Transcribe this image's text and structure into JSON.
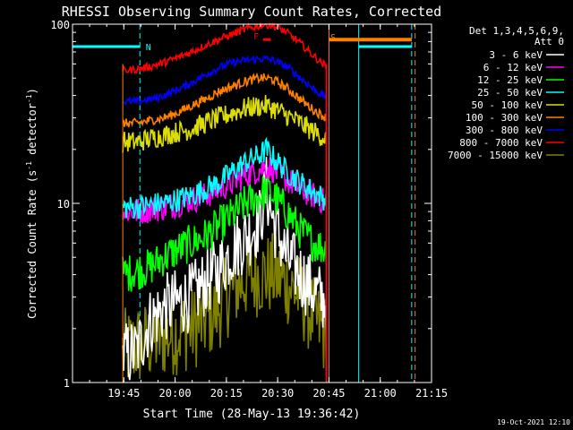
{
  "chart_data": {
    "type": "line",
    "title": "RHESSI Observing Summary Count Rates, Corrected",
    "ylabel_main": "Corrected Count Rate (s",
    "ylabel_sup1": "-1",
    "ylabel_mid": " detector",
    "ylabel_sup2": "-1",
    "ylabel_end": ")",
    "xlabel": "Start Time (28-May-13 19:36:42)",
    "timestamp": "19-Oct-2021 12:10",
    "x_range_minutes": [
      -6.7,
      98.3
    ],
    "y_scale": "log",
    "ylim": [
      1,
      100
    ],
    "y_ticks": [
      {
        "value": 1,
        "label": "1"
      },
      {
        "value": 10,
        "label": "10"
      },
      {
        "value": 100,
        "label": "100"
      }
    ],
    "x_ticks": [
      {
        "minute": 8.3,
        "label": "19:45"
      },
      {
        "minute": 23.3,
        "label": "20:00"
      },
      {
        "minute": 38.3,
        "label": "20:15"
      },
      {
        "minute": 53.3,
        "label": "20:30"
      },
      {
        "minute": 68.3,
        "label": "20:45"
      },
      {
        "minute": 83.3,
        "label": "21:00"
      },
      {
        "minute": 98.3,
        "label": "21:15"
      }
    ],
    "legend": {
      "position": "right",
      "header": [
        "Det 1,3,4,5,6,9,",
        "Att 0"
      ],
      "entries": [
        {
          "label": "3 - 6 keV",
          "color": "#ffffff"
        },
        {
          "label": "6 - 12 keV",
          "color": "#ff00ff"
        },
        {
          "label": "12 - 25 keV",
          "color": "#00ff00"
        },
        {
          "label": "25 - 50 keV",
          "color": "#00ffff"
        },
        {
          "label": "50 - 100 keV",
          "color": "#dddd00"
        },
        {
          "label": "100 - 300 keV",
          "color": "#ff8000"
        },
        {
          "label": "300 - 800 keV",
          "color": "#0000ff"
        },
        {
          "label": "800 - 7000 keV",
          "color": "#ff0000"
        },
        {
          "label": "7000 - 15000 keV",
          "color": "#808000"
        }
      ]
    },
    "annotations": [
      {
        "text": "N",
        "minute": 15.5,
        "value": 75,
        "color": "#00ffff"
      },
      {
        "text": "F",
        "minute": 47.0,
        "value": 86,
        "color": "#ff0000"
      },
      {
        "text": "S",
        "minute": 69.5,
        "value": 85,
        "color": "#ff8000"
      }
    ],
    "night_bars": [
      {
        "start": -6.7,
        "end": 13.0,
        "value": 75,
        "color": "#00ffff"
      },
      {
        "start": 77.0,
        "end": 92.5,
        "value": 75,
        "color": "#00ffff"
      }
    ],
    "saa_bar": {
      "start": 68.3,
      "end": 92.5,
      "value": 82,
      "color": "#ff8000"
    },
    "flare_mark": {
      "start": 49.0,
      "end": 51.3,
      "value": 82,
      "color": "#ff0000"
    },
    "markers": [
      {
        "minute": -6.7,
        "color": "#00ffff",
        "style": "solid"
      },
      {
        "minute": 13.0,
        "color": "#00ffff",
        "style": "dashed"
      },
      {
        "minute": 68.3,
        "color": "#ff8000",
        "style": "solid"
      },
      {
        "minute": 77.0,
        "color": "#00ffff",
        "style": "solid"
      },
      {
        "minute": 92.5,
        "color": "#00ffff",
        "style": "dashed"
      },
      {
        "minute": 93.5,
        "color": "#ff8000",
        "style": "dashed"
      }
    ],
    "series_window": [
      8.0,
      67.5
    ],
    "series": [
      {
        "label": "7000 - 15000 keV",
        "color": "#808000",
        "x": [
          8,
          12,
          16,
          20,
          24,
          28,
          32,
          36,
          40,
          44,
          48,
          50,
          52,
          56,
          60,
          64,
          67.5
        ],
        "y": [
          1.5,
          1.6,
          1.7,
          1.8,
          1.9,
          2.0,
          2.2,
          2.6,
          3.3,
          3.8,
          4.0,
          4.0,
          4.0,
          3.6,
          3.0,
          2.3,
          1.8
        ],
        "noise": 0.55
      },
      {
        "label": "3 - 6 keV",
        "color": "#ffffff",
        "x": [
          8,
          12,
          16,
          20,
          24,
          28,
          32,
          36,
          40,
          44,
          48,
          50,
          52,
          56,
          60,
          64,
          67.5
        ],
        "y": [
          1.4,
          1.5,
          2.2,
          2.6,
          2.8,
          3.0,
          3.6,
          4.2,
          5.5,
          6.5,
          8.0,
          12.0,
          8.0,
          5.0,
          4.0,
          3.2,
          2.8
        ],
        "noise": 0.45
      },
      {
        "label": "12 - 25 keV",
        "color": "#00ff00",
        "x": [
          8,
          12,
          16,
          20,
          24,
          28,
          32,
          36,
          40,
          44,
          48,
          50,
          52,
          56,
          60,
          64,
          67.5
        ],
        "y": [
          4.0,
          4.2,
          4.4,
          5.0,
          5.5,
          6.0,
          6.5,
          7.5,
          8.5,
          10.0,
          11.0,
          12.0,
          11.0,
          9.0,
          7.0,
          6.0,
          5.5
        ],
        "noise": 0.25
      },
      {
        "label": "6 - 12 keV",
        "color": "#ff00ff",
        "x": [
          8,
          12,
          16,
          20,
          24,
          28,
          32,
          36,
          40,
          44,
          48,
          50,
          52,
          56,
          60,
          64,
          67.5
        ],
        "y": [
          9.0,
          9.0,
          9.3,
          9.5,
          10.0,
          10.5,
          11.0,
          12.0,
          13.0,
          14.5,
          15.5,
          16.0,
          15.5,
          13.5,
          12.0,
          11.0,
          10.0
        ],
        "noise": 0.18
      },
      {
        "label": "25 - 50 keV",
        "color": "#00ffff",
        "x": [
          8,
          12,
          16,
          20,
          24,
          28,
          32,
          36,
          40,
          44,
          48,
          50,
          52,
          56,
          60,
          64,
          67.5
        ],
        "y": [
          9.5,
          9.5,
          9.8,
          10.0,
          10.5,
          11.0,
          12.0,
          13.0,
          15.0,
          17.0,
          18.5,
          20.0,
          18.0,
          15.0,
          13.0,
          11.5,
          10.5
        ],
        "noise": 0.16
      },
      {
        "label": "50 - 100 keV",
        "color": "#dddd00",
        "x": [
          8,
          12,
          16,
          20,
          24,
          28,
          32,
          36,
          40,
          44,
          48,
          50,
          52,
          56,
          60,
          64,
          67.5
        ],
        "y": [
          22.0,
          22.0,
          23.0,
          24.0,
          25.0,
          26.0,
          28.0,
          30.0,
          32.0,
          34.0,
          35.0,
          35.0,
          34.0,
          31.0,
          28.0,
          25.0,
          23.0
        ],
        "noise": 0.14
      },
      {
        "label": "100 - 300 keV",
        "color": "#ff8000",
        "x": [
          8,
          12,
          16,
          20,
          24,
          28,
          32,
          36,
          40,
          44,
          48,
          50,
          52,
          56,
          60,
          64,
          67.5
        ],
        "y": [
          28.0,
          28.0,
          29.0,
          30.0,
          32.0,
          35.0,
          38.0,
          42.0,
          45.0,
          48.0,
          50.0,
          50.0,
          49.0,
          44.0,
          38.0,
          33.0,
          30.0
        ],
        "noise": 0.06
      },
      {
        "label": "300 - 800 keV",
        "color": "#0000ff",
        "x": [
          8,
          12,
          16,
          20,
          24,
          28,
          32,
          36,
          40,
          44,
          48,
          50,
          52,
          56,
          60,
          64,
          67.5
        ],
        "y": [
          37.0,
          37.0,
          38.0,
          40.0,
          43.0,
          47.0,
          52.0,
          57.0,
          61.0,
          63.0,
          64.0,
          64.0,
          63.0,
          58.0,
          50.0,
          43.0,
          39.0
        ],
        "noise": 0.05
      },
      {
        "label": "800 - 7000 keV",
        "color": "#ff0000",
        "x": [
          8,
          12,
          16,
          20,
          24,
          28,
          32,
          36,
          40,
          44,
          48,
          50,
          52,
          56,
          60,
          64,
          67.5
        ],
        "y": [
          55.0,
          56.0,
          58.0,
          61.0,
          65.0,
          70.0,
          76.0,
          82.0,
          88.0,
          94.0,
          98.0,
          100.0,
          98.0,
          90.0,
          78.0,
          66.0,
          58.0
        ],
        "noise": 0.05
      }
    ]
  }
}
